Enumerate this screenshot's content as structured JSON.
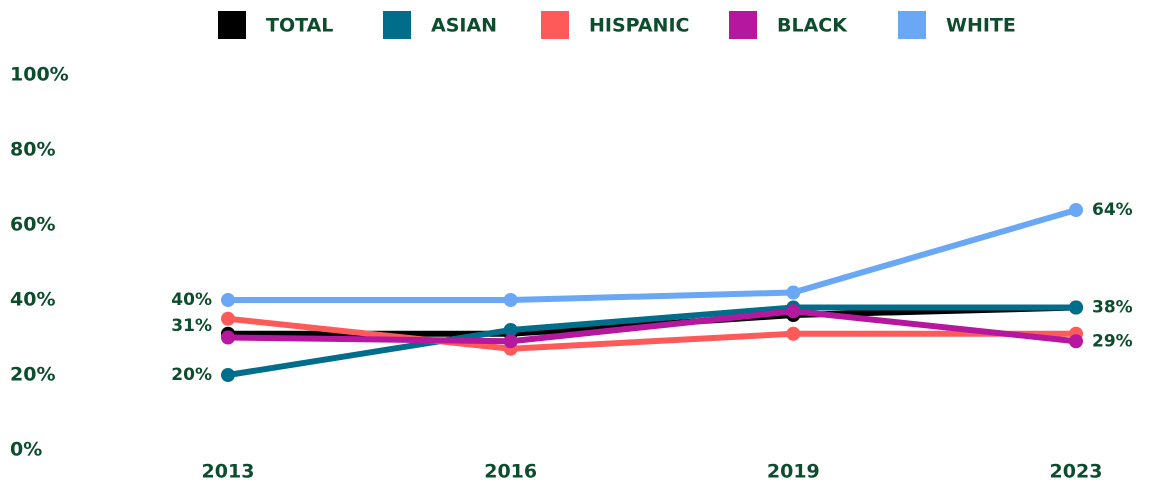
{
  "chart_data": {
    "type": "line",
    "categories": [
      "2013",
      "2016",
      "2019",
      "2023"
    ],
    "series": [
      {
        "name": "TOTAL",
        "color": "#000000",
        "values": [
          31,
          31,
          36,
          38
        ],
        "value_labels": [
          "31%",
          null,
          null,
          "38%"
        ]
      },
      {
        "name": "ASIAN",
        "color": "#006e8a",
        "values": [
          20,
          32,
          38,
          38
        ],
        "value_labels": [
          "20%",
          null,
          null,
          null
        ]
      },
      {
        "name": "HISPANIC",
        "color": "#ff5a5a",
        "values": [
          35,
          27,
          31,
          31
        ],
        "value_labels": [
          null,
          null,
          null,
          null
        ]
      },
      {
        "name": "BLACK",
        "color": "#b5179e",
        "values": [
          30,
          29,
          37,
          29
        ],
        "value_labels": [
          null,
          null,
          null,
          "29%"
        ]
      },
      {
        "name": "WHITE",
        "color": "#6aa8f5",
        "values": [
          40,
          40,
          42,
          64
        ],
        "value_labels": [
          "40%",
          null,
          null,
          "64%"
        ]
      }
    ],
    "ylim": [
      0,
      100
    ],
    "yticks": [
      {
        "value": 0,
        "label": "0%"
      },
      {
        "value": 20,
        "label": "20%"
      },
      {
        "value": 40,
        "label": "40%"
      },
      {
        "value": 60,
        "label": "60%"
      },
      {
        "value": 80,
        "label": "80%"
      },
      {
        "value": 100,
        "label": "100%"
      }
    ],
    "grid": false,
    "legend": "top"
  }
}
